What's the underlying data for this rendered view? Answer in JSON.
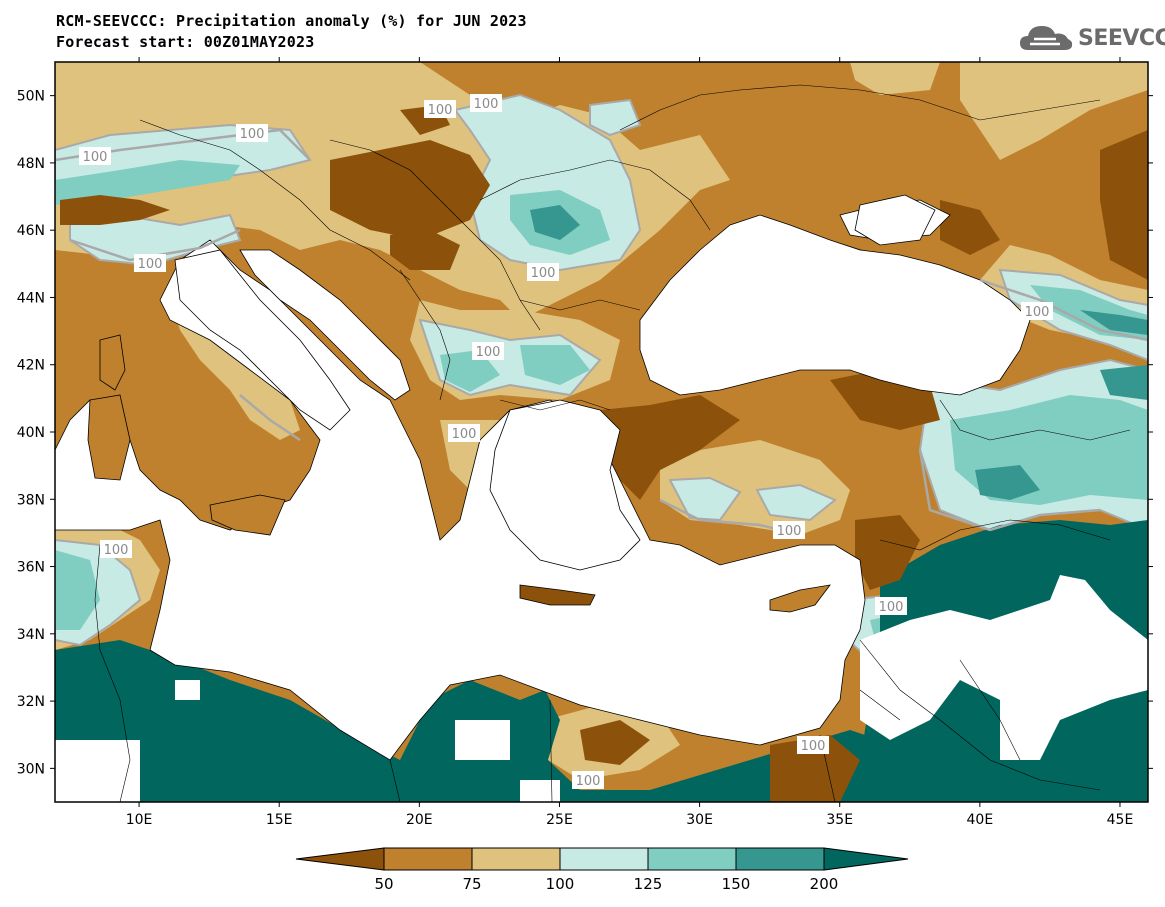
{
  "title_line1": "RCM-SEEVCCC: Precipitation anomaly (%) for JUN 2023",
  "title_line2": "Forecast start: 00Z01MAY2023",
  "logo_text": "SEEVCCC",
  "map": {
    "lon_range": [
      7,
      46
    ],
    "lat_range": [
      29,
      51
    ],
    "lon_ticks": [
      "10E",
      "15E",
      "20E",
      "25E",
      "30E",
      "35E",
      "40E",
      "45E"
    ],
    "lat_ticks": [
      "50N",
      "48N",
      "46N",
      "44N",
      "42N",
      "40N",
      "38N",
      "36N",
      "34N",
      "32N",
      "30N"
    ],
    "contour_labels": [
      "100",
      "100",
      "100",
      "100",
      "100",
      "100",
      "100",
      "100",
      "100",
      "100",
      "100",
      "100",
      "100",
      "100"
    ]
  },
  "colorbar": {
    "labels": [
      "50",
      "75",
      "100",
      "125",
      "150",
      "200"
    ],
    "colors": [
      "#8c510a",
      "#bf812d",
      "#dfc27d",
      "#c7eae5",
      "#80cdc1",
      "#35978f",
      "#01665e"
    ]
  },
  "colors": {
    "sea": "#ffffff",
    "coast": "#000000",
    "contour_100": "#a9a9a9"
  }
}
